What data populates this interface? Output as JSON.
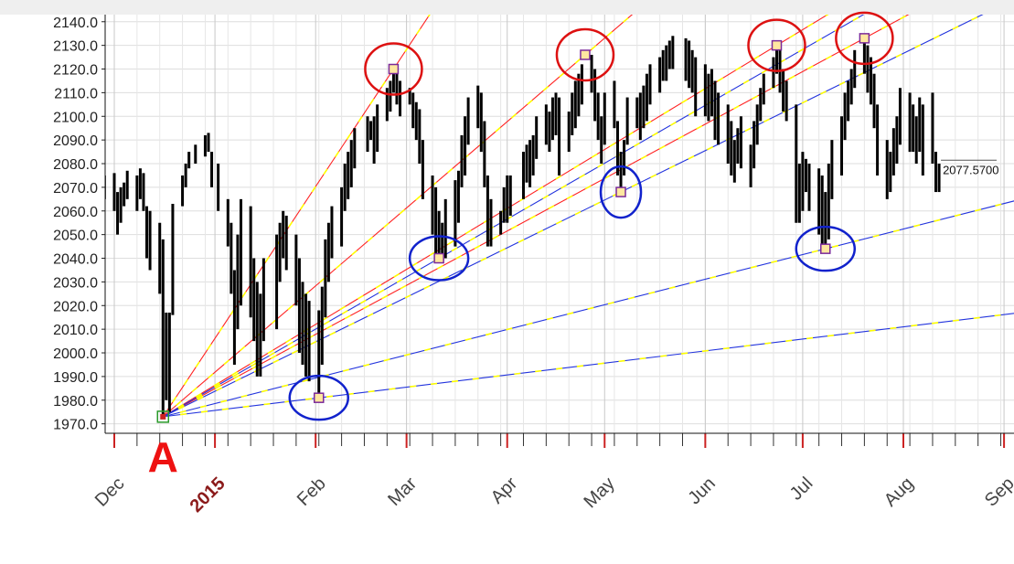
{
  "chart_data": {
    "type": "ohlc",
    "y_ticks": [
      "2140.0",
      "2130.0",
      "2120.0",
      "2110.0",
      "2100.0",
      "2090.0",
      "2080.0",
      "2070.0",
      "2060.0",
      "2050.0",
      "2040.0",
      "2030.0",
      "2020.0",
      "2010.0",
      "2000.0",
      "1990.0",
      "1980.0",
      "1970.0"
    ],
    "ylim": [
      1966,
      2143
    ],
    "grid": true,
    "x_month_labels": [
      {
        "label": "Dec",
        "date": "2014-12-01",
        "highlight": false
      },
      {
        "label": "2015",
        "date": "2015-01-01",
        "highlight": true
      },
      {
        "label": "Feb",
        "date": "2015-02-01",
        "highlight": false
      },
      {
        "label": "Mar",
        "date": "2015-03-01",
        "highlight": false
      },
      {
        "label": "Apr",
        "date": "2015-04-01",
        "highlight": false
      },
      {
        "label": "May",
        "date": "2015-05-01",
        "highlight": false
      },
      {
        "label": "Jun",
        "date": "2015-06-01",
        "highlight": false
      },
      {
        "label": "Jul",
        "date": "2015-07-01",
        "highlight": false
      },
      {
        "label": "Aug",
        "date": "2015-08-01",
        "highlight": false
      },
      {
        "label": "Sep",
        "date": "2015-09-01",
        "highlight": false
      }
    ],
    "last_price_label": "2077.5700",
    "pivot_label": "A",
    "pivot": {
      "date": "2014-12-16",
      "value": 1973
    },
    "colors": {
      "up_fan": "#ff2222",
      "down_fan": "#2233dd",
      "fan_dash": "#ffff00",
      "circle_high": "#dd1111",
      "circle_low": "#1122cc",
      "bars": "#000000",
      "marker_fill": "#ffe7a0",
      "marker_edge": "#7a2a9a",
      "pivot_marker": "#2a9a2a"
    },
    "highs": [
      {
        "date": "2015-02-25",
        "value": 2120
      },
      {
        "date": "2015-04-25",
        "value": 2126
      },
      {
        "date": "2015-06-23",
        "value": 2130
      },
      {
        "date": "2015-07-20",
        "value": 2133
      }
    ],
    "lows": [
      {
        "date": "2015-02-02",
        "value": 1981
      },
      {
        "date": "2015-03-11",
        "value": 2040
      },
      {
        "date": "2015-05-06",
        "value": 2068
      },
      {
        "date": "2015-07-08",
        "value": 2044
      }
    ],
    "bars": [
      {
        "date": "2014-11-28",
        "h": 2075,
        "l": 2065
      },
      {
        "date": "2014-12-01",
        "h": 2076,
        "l": 2060
      },
      {
        "date": "2014-12-02",
        "h": 2068,
        "l": 2050
      },
      {
        "date": "2014-12-03",
        "h": 2070,
        "l": 2055
      },
      {
        "date": "2014-12-04",
        "h": 2072,
        "l": 2062
      },
      {
        "date": "2014-12-05",
        "h": 2077,
        "l": 2065
      },
      {
        "date": "2014-12-08",
        "h": 2075,
        "l": 2060
      },
      {
        "date": "2014-12-09",
        "h": 2078,
        "l": 2065
      },
      {
        "date": "2014-12-10",
        "h": 2076,
        "l": 2060
      },
      {
        "date": "2014-12-11",
        "h": 2062,
        "l": 2040
      },
      {
        "date": "2014-12-12",
        "h": 2060,
        "l": 2035
      },
      {
        "date": "2014-12-15",
        "h": 2055,
        "l": 2025
      },
      {
        "date": "2014-12-16",
        "h": 2048,
        "l": 1972
      },
      {
        "date": "2014-12-17",
        "h": 2017,
        "l": 1980
      },
      {
        "date": "2014-12-18",
        "h": 2017,
        "l": 1975
      },
      {
        "date": "2014-12-19",
        "h": 2063,
        "l": 2016
      },
      {
        "date": "2014-12-22",
        "h": 2075,
        "l": 2062
      },
      {
        "date": "2014-12-23",
        "h": 2080,
        "l": 2070
      },
      {
        "date": "2014-12-24",
        "h": 2085,
        "l": 2078
      },
      {
        "date": "2014-12-26",
        "h": 2088,
        "l": 2080
      },
      {
        "date": "2014-12-29",
        "h": 2092,
        "l": 2083
      },
      {
        "date": "2014-12-30",
        "h": 2093,
        "l": 2085
      },
      {
        "date": "2014-12-31",
        "h": 2085,
        "l": 2070
      },
      {
        "date": "2015-01-02",
        "h": 2080,
        "l": 2060
      },
      {
        "date": "2015-01-05",
        "h": 2065,
        "l": 2045
      },
      {
        "date": "2015-01-06",
        "h": 2055,
        "l": 2025
      },
      {
        "date": "2015-01-07",
        "h": 2035,
        "l": 1995
      },
      {
        "date": "2015-01-08",
        "h": 2050,
        "l": 2010
      },
      {
        "date": "2015-01-09",
        "h": 2065,
        "l": 2020
      },
      {
        "date": "2015-01-12",
        "h": 2062,
        "l": 2015
      },
      {
        "date": "2015-01-13",
        "h": 2040,
        "l": 2005
      },
      {
        "date": "2015-01-14",
        "h": 2030,
        "l": 1990
      },
      {
        "date": "2015-01-15",
        "h": 2025,
        "l": 1990
      },
      {
        "date": "2015-01-16",
        "h": 2040,
        "l": 2005
      },
      {
        "date": "2015-01-20",
        "h": 2050,
        "l": 2010
      },
      {
        "date": "2015-01-21",
        "h": 2055,
        "l": 2030
      },
      {
        "date": "2015-01-22",
        "h": 2060,
        "l": 2040
      },
      {
        "date": "2015-01-23",
        "h": 2058,
        "l": 2035
      },
      {
        "date": "2015-01-26",
        "h": 2050,
        "l": 2020
      },
      {
        "date": "2015-01-27",
        "h": 2040,
        "l": 2000
      },
      {
        "date": "2015-01-28",
        "h": 2030,
        "l": 1995
      },
      {
        "date": "2015-01-29",
        "h": 2025,
        "l": 1990
      },
      {
        "date": "2015-01-30",
        "h": 2022,
        "l": 1988
      },
      {
        "date": "2015-02-02",
        "h": 2018,
        "l": 1983
      },
      {
        "date": "2015-02-03",
        "h": 2028,
        "l": 1995
      },
      {
        "date": "2015-02-04",
        "h": 2048,
        "l": 2015
      },
      {
        "date": "2015-02-05",
        "h": 2055,
        "l": 2030
      },
      {
        "date": "2015-02-06",
        "h": 2062,
        "l": 2040
      },
      {
        "date": "2015-02-09",
        "h": 2070,
        "l": 2045
      },
      {
        "date": "2015-02-10",
        "h": 2080,
        "l": 2060
      },
      {
        "date": "2015-02-11",
        "h": 2085,
        "l": 2065
      },
      {
        "date": "2015-02-12",
        "h": 2090,
        "l": 2070
      },
      {
        "date": "2015-02-13",
        "h": 2095,
        "l": 2078
      },
      {
        "date": "2015-02-17",
        "h": 2100,
        "l": 2085
      },
      {
        "date": "2015-02-18",
        "h": 2098,
        "l": 2090
      },
      {
        "date": "2015-02-19",
        "h": 2100,
        "l": 2080
      },
      {
        "date": "2015-02-20",
        "h": 2105,
        "l": 2085
      },
      {
        "date": "2015-02-23",
        "h": 2112,
        "l": 2098
      },
      {
        "date": "2015-02-24",
        "h": 2115,
        "l": 2102
      },
      {
        "date": "2015-02-25",
        "h": 2119,
        "l": 2110
      },
      {
        "date": "2015-02-26",
        "h": 2118,
        "l": 2105
      },
      {
        "date": "2015-02-27",
        "h": 2115,
        "l": 2100
      },
      {
        "date": "2015-03-02",
        "h": 2112,
        "l": 2105
      },
      {
        "date": "2015-03-03",
        "h": 2110,
        "l": 2095
      },
      {
        "date": "2015-03-04",
        "h": 2106,
        "l": 2090
      },
      {
        "date": "2015-03-05",
        "h": 2103,
        "l": 2080
      },
      {
        "date": "2015-03-06",
        "h": 2090,
        "l": 2065
      },
      {
        "date": "2015-03-09",
        "h": 2075,
        "l": 2050
      },
      {
        "date": "2015-03-10",
        "h": 2070,
        "l": 2040
      },
      {
        "date": "2015-03-11",
        "h": 2060,
        "l": 2040
      },
      {
        "date": "2015-03-12",
        "h": 2055,
        "l": 2041
      },
      {
        "date": "2015-03-13",
        "h": 2065,
        "l": 2040
      },
      {
        "date": "2015-03-16",
        "h": 2073,
        "l": 2045
      },
      {
        "date": "2015-03-17",
        "h": 2077,
        "l": 2055
      },
      {
        "date": "2015-03-18",
        "h": 2092,
        "l": 2070
      },
      {
        "date": "2015-03-19",
        "h": 2100,
        "l": 2075
      },
      {
        "date": "2015-03-20",
        "h": 2108,
        "l": 2088
      },
      {
        "date": "2015-03-23",
        "h": 2113,
        "l": 2095
      },
      {
        "date": "2015-03-24",
        "h": 2110,
        "l": 2085
      },
      {
        "date": "2015-03-25",
        "h": 2098,
        "l": 2070
      },
      {
        "date": "2015-03-26",
        "h": 2075,
        "l": 2045
      },
      {
        "date": "2015-03-27",
        "h": 2065,
        "l": 2045
      },
      {
        "date": "2015-03-30",
        "h": 2060,
        "l": 2050
      },
      {
        "date": "2015-03-31",
        "h": 2070,
        "l": 2055
      },
      {
        "date": "2015-04-01",
        "h": 2075,
        "l": 2055
      },
      {
        "date": "2015-04-02",
        "h": 2075,
        "l": 2058
      },
      {
        "date": "2015-04-06",
        "h": 2085,
        "l": 2065
      },
      {
        "date": "2015-04-07",
        "h": 2088,
        "l": 2072
      },
      {
        "date": "2015-04-08",
        "h": 2090,
        "l": 2070
      },
      {
        "date": "2015-04-09",
        "h": 2092,
        "l": 2075
      },
      {
        "date": "2015-04-10",
        "h": 2100,
        "l": 2082
      },
      {
        "date": "2015-04-13",
        "h": 2105,
        "l": 2088
      },
      {
        "date": "2015-04-14",
        "h": 2102,
        "l": 2085
      },
      {
        "date": "2015-04-15",
        "h": 2108,
        "l": 2090
      },
      {
        "date": "2015-04-16",
        "h": 2110,
        "l": 2092
      },
      {
        "date": "2015-04-17",
        "h": 2108,
        "l": 2075
      },
      {
        "date": "2015-04-20",
        "h": 2102,
        "l": 2085
      },
      {
        "date": "2015-04-21",
        "h": 2110,
        "l": 2092
      },
      {
        "date": "2015-04-22",
        "h": 2115,
        "l": 2095
      },
      {
        "date": "2015-04-23",
        "h": 2118,
        "l": 2100
      },
      {
        "date": "2015-04-24",
        "h": 2122,
        "l": 2105
      },
      {
        "date": "2015-04-27",
        "h": 2126,
        "l": 2110
      },
      {
        "date": "2015-04-28",
        "h": 2120,
        "l": 2098
      },
      {
        "date": "2015-04-29",
        "h": 2110,
        "l": 2090
      },
      {
        "date": "2015-04-30",
        "h": 2100,
        "l": 2080
      },
      {
        "date": "2015-05-01",
        "h": 2110,
        "l": 2088
      },
      {
        "date": "2015-05-04",
        "h": 2115,
        "l": 2095
      },
      {
        "date": "2015-05-05",
        "h": 2098,
        "l": 2075
      },
      {
        "date": "2015-05-06",
        "h": 2085,
        "l": 2068
      },
      {
        "date": "2015-05-07",
        "h": 2090,
        "l": 2075
      },
      {
        "date": "2015-05-08",
        "h": 2108,
        "l": 2088
      },
      {
        "date": "2015-05-11",
        "h": 2108,
        "l": 2095
      },
      {
        "date": "2015-05-12",
        "h": 2110,
        "l": 2090
      },
      {
        "date": "2015-05-13",
        "h": 2113,
        "l": 2095
      },
      {
        "date": "2015-05-14",
        "h": 2118,
        "l": 2098
      },
      {
        "date": "2015-05-15",
        "h": 2122,
        "l": 2105
      },
      {
        "date": "2015-05-18",
        "h": 2125,
        "l": 2110
      },
      {
        "date": "2015-05-19",
        "h": 2128,
        "l": 2115
      },
      {
        "date": "2015-05-20",
        "h": 2130,
        "l": 2115
      },
      {
        "date": "2015-05-21",
        "h": 2132,
        "l": 2120
      },
      {
        "date": "2015-05-22",
        "h": 2134,
        "l": 2120
      },
      {
        "date": "2015-05-26",
        "h": 2133,
        "l": 2115
      },
      {
        "date": "2015-05-27",
        "h": 2132,
        "l": 2112
      },
      {
        "date": "2015-05-28",
        "h": 2128,
        "l": 2110
      },
      {
        "date": "2015-05-29",
        "h": 2125,
        "l": 2100
      },
      {
        "date": "2015-06-01",
        "h": 2122,
        "l": 2100
      },
      {
        "date": "2015-06-02",
        "h": 2118,
        "l": 2098
      },
      {
        "date": "2015-06-03",
        "h": 2120,
        "l": 2100
      },
      {
        "date": "2015-06-04",
        "h": 2115,
        "l": 2090
      },
      {
        "date": "2015-06-05",
        "h": 2110,
        "l": 2088
      },
      {
        "date": "2015-06-08",
        "h": 2105,
        "l": 2080
      },
      {
        "date": "2015-06-09",
        "h": 2098,
        "l": 2075
      },
      {
        "date": "2015-06-10",
        "h": 2090,
        "l": 2072
      },
      {
        "date": "2015-06-11",
        "h": 2095,
        "l": 2080
      },
      {
        "date": "2015-06-12",
        "h": 2100,
        "l": 2078
      },
      {
        "date": "2015-06-15",
        "h": 2088,
        "l": 2070
      },
      {
        "date": "2015-06-16",
        "h": 2098,
        "l": 2078
      },
      {
        "date": "2015-06-17",
        "h": 2105,
        "l": 2088
      },
      {
        "date": "2015-06-18",
        "h": 2112,
        "l": 2098
      },
      {
        "date": "2015-06-19",
        "h": 2118,
        "l": 2105
      },
      {
        "date": "2015-06-22",
        "h": 2125,
        "l": 2112
      },
      {
        "date": "2015-06-23",
        "h": 2130,
        "l": 2118
      },
      {
        "date": "2015-06-24",
        "h": 2128,
        "l": 2110
      },
      {
        "date": "2015-06-25",
        "h": 2120,
        "l": 2102
      },
      {
        "date": "2015-06-26",
        "h": 2115,
        "l": 2098
      },
      {
        "date": "2015-06-29",
        "h": 2105,
        "l": 2055
      },
      {
        "date": "2015-06-30",
        "h": 2080,
        "l": 2055
      },
      {
        "date": "2015-07-01",
        "h": 2085,
        "l": 2060
      },
      {
        "date": "2015-07-02",
        "h": 2082,
        "l": 2068
      },
      {
        "date": "2015-07-03",
        "h": 2080,
        "l": 2060
      },
      {
        "date": "2015-07-06",
        "h": 2078,
        "l": 2050
      },
      {
        "date": "2015-07-07",
        "h": 2075,
        "l": 2045
      },
      {
        "date": "2015-07-08",
        "h": 2068,
        "l": 2044
      },
      {
        "date": "2015-07-09",
        "h": 2080,
        "l": 2048
      },
      {
        "date": "2015-07-10",
        "h": 2090,
        "l": 2065
      },
      {
        "date": "2015-07-13",
        "h": 2100,
        "l": 2075
      },
      {
        "date": "2015-07-14",
        "h": 2110,
        "l": 2090
      },
      {
        "date": "2015-07-15",
        "h": 2115,
        "l": 2098
      },
      {
        "date": "2015-07-16",
        "h": 2120,
        "l": 2105
      },
      {
        "date": "2015-07-17",
        "h": 2128,
        "l": 2112
      },
      {
        "date": "2015-07-20",
        "h": 2133,
        "l": 2118
      },
      {
        "date": "2015-07-21",
        "h": 2130,
        "l": 2110
      },
      {
        "date": "2015-07-22",
        "h": 2125,
        "l": 2105
      },
      {
        "date": "2015-07-23",
        "h": 2118,
        "l": 2095
      },
      {
        "date": "2015-07-24",
        "h": 2105,
        "l": 2075
      },
      {
        "date": "2015-07-27",
        "h": 2090,
        "l": 2065
      },
      {
        "date": "2015-07-28",
        "h": 2085,
        "l": 2068
      },
      {
        "date": "2015-07-29",
        "h": 2095,
        "l": 2075
      },
      {
        "date": "2015-07-30",
        "h": 2100,
        "l": 2080
      },
      {
        "date": "2015-07-31",
        "h": 2112,
        "l": 2088
      },
      {
        "date": "2015-08-03",
        "h": 2110,
        "l": 2085
      },
      {
        "date": "2015-08-04",
        "h": 2105,
        "l": 2085
      },
      {
        "date": "2015-08-05",
        "h": 2100,
        "l": 2080
      },
      {
        "date": "2015-08-06",
        "h": 2108,
        "l": 2085
      },
      {
        "date": "2015-08-07",
        "h": 2105,
        "l": 2075
      },
      {
        "date": "2015-08-10",
        "h": 2110,
        "l": 2080
      },
      {
        "date": "2015-08-11",
        "h": 2085,
        "l": 2068
      },
      {
        "date": "2015-08-12",
        "h": 2080,
        "l": 2068
      }
    ]
  }
}
